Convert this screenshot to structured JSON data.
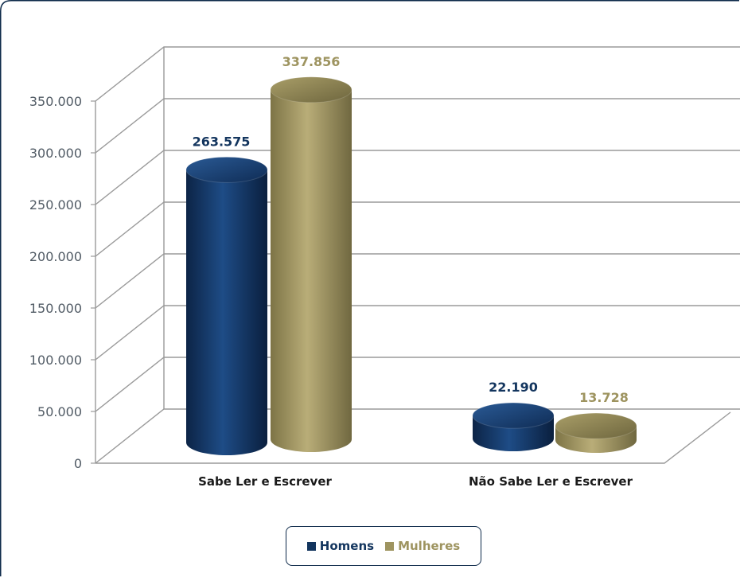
{
  "chart_data": {
    "type": "bar",
    "style": "3d-cylinder",
    "categories": [
      "Sabe Ler e Escrever",
      "Não Sabe Ler e Escrever"
    ],
    "series": [
      {
        "name": "Homens",
        "values": [
          263575,
          22190
        ],
        "labels": [
          "263.575",
          "22.190"
        ],
        "color": "#13355e"
      },
      {
        "name": "Mulheres",
        "values": [
          337856,
          13728
        ],
        "labels": [
          "337.856",
          "13.728"
        ],
        "color": "#9e9460"
      }
    ],
    "ylim": [
      0,
      350000
    ],
    "yticks": [
      "0",
      "50.000",
      "100.000",
      "150.000",
      "200.000",
      "250.000",
      "300.000",
      "350.000"
    ],
    "grid": true,
    "legend_position": "bottom",
    "colors": {
      "frame": "#0e2a4a",
      "grid": "#9a9a9a",
      "tick_text": "#505a64"
    }
  },
  "legend": {
    "items": [
      {
        "label": "Homens",
        "color": "#13355e"
      },
      {
        "label": "Mulheres",
        "color": "#9e9460"
      }
    ]
  }
}
